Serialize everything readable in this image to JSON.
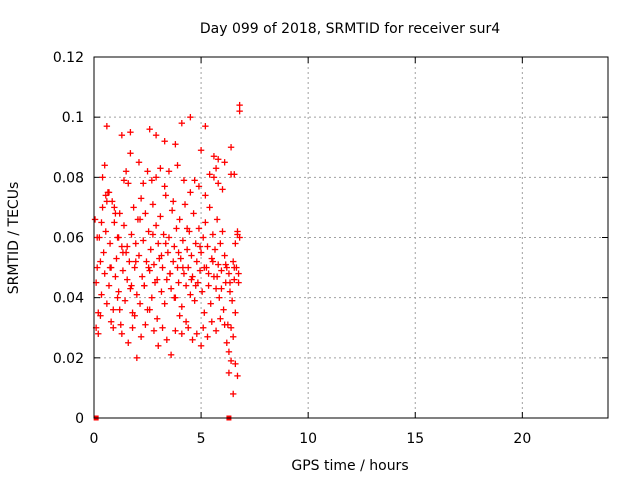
{
  "chart_data": {
    "type": "scatter",
    "title": "Day 099 of 2018, SRMTID for receiver sur4",
    "xlabel": "GPS time / hours",
    "ylabel": "SRMTID / TECUs",
    "xlim": [
      0,
      24
    ],
    "ylim": [
      0,
      0.12
    ],
    "xticks": [
      "0",
      "5",
      "10",
      "15",
      "20"
    ],
    "yticks": [
      "0",
      "0.02",
      "0.04",
      "0.06",
      "0.08",
      "0.1",
      "0.12"
    ],
    "grid": true,
    "marker_color": "#ff0000",
    "marker": "plus",
    "series": [
      {
        "x": [
          0.05,
          0.1,
          0.15,
          0.2,
          0.25,
          0.3,
          0.35,
          0.4,
          0.45,
          0.5,
          0.55,
          0.6,
          0.65,
          0.7,
          0.75,
          0.8,
          0.85,
          0.9,
          0.95,
          1.0,
          1.05,
          1.1,
          1.15,
          1.2,
          1.25,
          1.3,
          1.35,
          1.4,
          1.45,
          1.5,
          1.55,
          1.6,
          1.65,
          1.7,
          1.75,
          1.8,
          1.85,
          1.9,
          1.95,
          2.0,
          2.05,
          2.1,
          2.15,
          2.2,
          2.25,
          2.3,
          2.35,
          2.4,
          2.45,
          2.5,
          2.55,
          2.6,
          2.65,
          2.7,
          2.75,
          2.8,
          2.85,
          2.9,
          2.95,
          3.0,
          3.05,
          3.1,
          3.15,
          3.2,
          3.25,
          3.3,
          3.35,
          3.4,
          3.45,
          3.5,
          3.55,
          3.6,
          3.65,
          3.7,
          3.75,
          3.8,
          3.85,
          3.9,
          3.95,
          4.0,
          4.05,
          4.1,
          4.15,
          4.2,
          4.25,
          4.3,
          4.35,
          4.4,
          4.45,
          4.5,
          4.55,
          4.6,
          4.65,
          4.7,
          4.75,
          4.8,
          4.85,
          4.9,
          4.95,
          5.0,
          5.05,
          5.1,
          5.15,
          5.2,
          5.25,
          5.3,
          5.35,
          5.4,
          5.45,
          5.5,
          5.55,
          5.6,
          5.65,
          5.7,
          5.75,
          5.8,
          5.85,
          5.9,
          5.95,
          6.0,
          6.05,
          6.1,
          6.15,
          6.2,
          6.25,
          6.3,
          6.35,
          6.4,
          6.45,
          6.5,
          6.55,
          6.6,
          6.65,
          6.7,
          6.75,
          6.8,
          0.1,
          0.2,
          0.3,
          0.4,
          0.5,
          0.6,
          0.7,
          0.8,
          0.9,
          1.0,
          1.1,
          1.2,
          1.3,
          1.4,
          1.5,
          1.6,
          1.7,
          1.8,
          1.9,
          2.0,
          2.1,
          2.2,
          2.3,
          2.4,
          2.5,
          2.6,
          2.7,
          2.8,
          2.9,
          3.0,
          3.1,
          3.2,
          3.3,
          3.4,
          3.5,
          3.6,
          3.7,
          3.8,
          3.9,
          4.0,
          4.1,
          4.2,
          4.3,
          4.4,
          4.5,
          4.6,
          4.7,
          4.8,
          4.9,
          5.0,
          5.1,
          5.2,
          5.3,
          5.4,
          5.5,
          5.6,
          5.7,
          5.8,
          5.9,
          6.0,
          6.1,
          6.2,
          6.3,
          6.4,
          6.5,
          6.6,
          6.7,
          0.15,
          0.35,
          0.55,
          0.75,
          0.95,
          1.15,
          1.35,
          1.55,
          1.75,
          1.95,
          2.15,
          2.35,
          2.55,
          2.75,
          2.95,
          3.15,
          3.35,
          3.55,
          3.75,
          3.95,
          4.15,
          4.35,
          4.55,
          4.75,
          4.95,
          5.15,
          5.35,
          5.55,
          5.75,
          5.95,
          6.15,
          6.35,
          6.55,
          6.75,
          0.6,
          1.3,
          1.7,
          2.6,
          2.9,
          3.3,
          3.8,
          4.1,
          4.5,
          5.0,
          5.2,
          5.6,
          5.7,
          6.1,
          6.3,
          6.4,
          6.7,
          6.8,
          6.8,
          6.4,
          6.5,
          5.8,
          6.6,
          6.55
        ],
        "y": [
          0.066,
          0.045,
          0.05,
          0.035,
          0.06,
          0.052,
          0.041,
          0.07,
          0.055,
          0.048,
          0.062,
          0.038,
          0.075,
          0.044,
          0.058,
          0.05,
          0.072,
          0.036,
          0.065,
          0.047,
          0.053,
          0.06,
          0.042,
          0.068,
          0.031,
          0.057,
          0.049,
          0.064,
          0.039,
          0.055,
          0.046,
          0.078,
          0.052,
          0.043,
          0.061,
          0.035,
          0.07,
          0.05,
          0.058,
          0.041,
          0.066,
          0.054,
          0.038,
          0.073,
          0.047,
          0.059,
          0.044,
          0.068,
          0.052,
          0.036,
          0.062,
          0.049,
          0.056,
          0.04,
          0.071,
          0.051,
          0.045,
          0.064,
          0.033,
          0.058,
          0.053,
          0.067,
          0.042,
          0.05,
          0.061,
          0.038,
          0.074,
          0.046,
          0.055,
          0.06,
          0.048,
          0.043,
          0.069,
          0.052,
          0.057,
          0.04,
          0.063,
          0.05,
          0.045,
          0.066,
          0.053,
          0.037,
          0.059,
          0.048,
          0.071,
          0.044,
          0.056,
          0.05,
          0.062,
          0.041,
          0.054,
          0.047,
          0.068,
          0.039,
          0.058,
          0.052,
          0.045,
          0.063,
          0.049,
          0.055,
          0.042,
          0.06,
          0.035,
          0.065,
          0.05,
          0.057,
          0.044,
          0.07,
          0.038,
          0.053,
          0.061,
          0.047,
          0.056,
          0.043,
          0.066,
          0.051,
          0.04,
          0.058,
          0.049,
          0.062,
          0.036,
          0.054,
          0.045,
          0.05,
          0.031,
          0.048,
          0.042,
          0.03,
          0.039,
          0.052,
          0.046,
          0.058,
          0.05,
          0.061,
          0.045,
          0.06,
          0.03,
          0.028,
          0.034,
          0.08,
          0.084,
          0.072,
          0.075,
          0.032,
          0.03,
          0.068,
          0.04,
          0.036,
          0.028,
          0.079,
          0.082,
          0.025,
          0.088,
          0.03,
          0.034,
          0.02,
          0.085,
          0.027,
          0.078,
          0.031,
          0.082,
          0.036,
          0.079,
          0.029,
          0.08,
          0.024,
          0.083,
          0.03,
          0.077,
          0.026,
          0.082,
          0.021,
          0.072,
          0.029,
          0.084,
          0.034,
          0.028,
          0.079,
          0.032,
          0.03,
          0.075,
          0.026,
          0.079,
          0.028,
          0.077,
          0.024,
          0.03,
          0.074,
          0.027,
          0.081,
          0.032,
          0.08,
          0.029,
          0.078,
          0.033,
          0.076,
          0.031,
          0.025,
          0.022,
          0.081,
          0.027,
          0.035,
          0.062,
          0.06,
          0.065,
          0.074,
          0.05,
          0.07,
          0.06,
          0.055,
          0.057,
          0.044,
          0.052,
          0.066,
          0.044,
          0.05,
          0.061,
          0.046,
          0.054,
          0.058,
          0.048,
          0.04,
          0.055,
          0.05,
          0.063,
          0.046,
          0.044,
          0.057,
          0.05,
          0.048,
          0.052,
          0.047,
          0.043,
          0.051,
          0.045,
          0.05,
          0.048,
          0.097,
          0.094,
          0.095,
          0.096,
          0.094,
          0.092,
          0.091,
          0.098,
          0.1,
          0.089,
          0.097,
          0.087,
          0.083,
          0.085,
          0.015,
          0.09,
          0.014,
          0.104,
          0.102,
          0.019,
          0.008,
          0.086,
          0.018,
          0.081
        ]
      }
    ],
    "zero_markers": [
      0.1,
      6.3
    ]
  }
}
